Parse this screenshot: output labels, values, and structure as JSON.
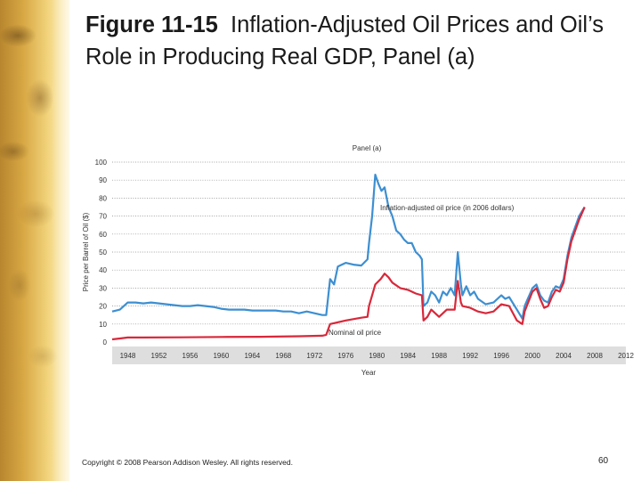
{
  "slide": {
    "title_bold": "Figure 11-15",
    "title_rest": "Inflation-Adjusted Oil Prices and Oil’s Role in Producing Real GDP, Panel (a)",
    "copyright": "Copyright © 2008 Pearson Addison Wesley. All rights reserved.",
    "page_number": "60"
  },
  "chart_data": {
    "type": "line",
    "title": "Panel (a)",
    "xlabel": "Year",
    "ylabel": "Price per Barrel of Oil ($)",
    "xlim": [
      1946,
      2012
    ],
    "ylim": [
      0,
      100
    ],
    "x_ticks": [
      1948,
      1952,
      1956,
      1960,
      1964,
      1968,
      1972,
      1976,
      1980,
      1984,
      1988,
      1992,
      1996,
      2000,
      2004,
      2008,
      2012
    ],
    "y_ticks": [
      0,
      10,
      20,
      30,
      40,
      50,
      60,
      70,
      80,
      90,
      100
    ],
    "grid": "horizontal dotted",
    "annotations": [
      {
        "text": "Inflation-adjusted oil price (in 2006 dollars)",
        "series": 0
      },
      {
        "text": "Nominal oil price",
        "series": 1
      }
    ],
    "series": [
      {
        "name": "Inflation-adjusted oil price (in 2006 dollars)",
        "color": "#3d8fd1",
        "points": [
          [
            1946,
            17
          ],
          [
            1947,
            18
          ],
          [
            1948,
            22
          ],
          [
            1949,
            22
          ],
          [
            1950,
            21.5
          ],
          [
            1951,
            22
          ],
          [
            1952,
            21.5
          ],
          [
            1953,
            21
          ],
          [
            1954,
            20.5
          ],
          [
            1955,
            20
          ],
          [
            1956,
            20
          ],
          [
            1957,
            20.5
          ],
          [
            1958,
            20
          ],
          [
            1959,
            19.5
          ],
          [
            1960,
            18.5
          ],
          [
            1961,
            18
          ],
          [
            1962,
            18
          ],
          [
            1963,
            18
          ],
          [
            1964,
            17.5
          ],
          [
            1965,
            17.5
          ],
          [
            1966,
            17.5
          ],
          [
            1967,
            17.5
          ],
          [
            1968,
            17
          ],
          [
            1969,
            17
          ],
          [
            1970,
            16
          ],
          [
            1971,
            17
          ],
          [
            1972,
            16
          ],
          [
            1973,
            15
          ],
          [
            1973.5,
            15
          ],
          [
            1974,
            35
          ],
          [
            1974.5,
            32
          ],
          [
            1975,
            42
          ],
          [
            1976,
            44
          ],
          [
            1977,
            43
          ],
          [
            1978,
            42.5
          ],
          [
            1978.8,
            46
          ],
          [
            1979,
            55
          ],
          [
            1979.4,
            70
          ],
          [
            1979.8,
            93
          ],
          [
            1980.2,
            88
          ],
          [
            1980.6,
            84
          ],
          [
            1981,
            86
          ],
          [
            1981.5,
            75
          ],
          [
            1982,
            70
          ],
          [
            1982.5,
            62
          ],
          [
            1983,
            60
          ],
          [
            1983.5,
            57
          ],
          [
            1984,
            55
          ],
          [
            1984.5,
            55
          ],
          [
            1985,
            50
          ],
          [
            1985.5,
            48
          ],
          [
            1985.8,
            46
          ],
          [
            1986,
            20
          ],
          [
            1986.5,
            22
          ],
          [
            1987,
            28
          ],
          [
            1987.5,
            26
          ],
          [
            1988,
            22
          ],
          [
            1988.5,
            28
          ],
          [
            1989,
            26
          ],
          [
            1989.5,
            30
          ],
          [
            1990,
            26
          ],
          [
            1990.4,
            50
          ],
          [
            1990.8,
            32
          ],
          [
            1991,
            26
          ],
          [
            1991.5,
            31
          ],
          [
            1992,
            26
          ],
          [
            1992.5,
            28
          ],
          [
            1993,
            24
          ],
          [
            1994,
            21
          ],
          [
            1995,
            22
          ],
          [
            1996,
            26
          ],
          [
            1996.5,
            24
          ],
          [
            1997,
            25
          ],
          [
            1998,
            18
          ],
          [
            1998.7,
            13
          ],
          [
            1999,
            20
          ],
          [
            2000,
            30
          ],
          [
            2000.5,
            32
          ],
          [
            2001,
            26
          ],
          [
            2001.5,
            23
          ],
          [
            2002,
            22
          ],
          [
            2002.5,
            28
          ],
          [
            2003,
            31
          ],
          [
            2003.5,
            30
          ],
          [
            2004,
            35
          ],
          [
            2004.5,
            48
          ],
          [
            2005,
            58
          ],
          [
            2006,
            70
          ],
          [
            2006.7,
            75
          ]
        ]
      },
      {
        "name": "Nominal oil price",
        "color": "#d8283a",
        "points": [
          [
            1946,
            1.5
          ],
          [
            1947,
            2
          ],
          [
            1948,
            2.5
          ],
          [
            1950,
            2.5
          ],
          [
            1955,
            2.6
          ],
          [
            1960,
            2.8
          ],
          [
            1965,
            2.9
          ],
          [
            1970,
            3.2
          ],
          [
            1973,
            3.5
          ],
          [
            1973.5,
            4
          ],
          [
            1974,
            10
          ],
          [
            1976,
            12
          ],
          [
            1978,
            13.5
          ],
          [
            1978.8,
            14
          ],
          [
            1979,
            20
          ],
          [
            1979.8,
            32
          ],
          [
            1980.5,
            35
          ],
          [
            1981,
            38
          ],
          [
            1981.5,
            36
          ],
          [
            1982,
            33
          ],
          [
            1983,
            30
          ],
          [
            1984,
            29
          ],
          [
            1985,
            27
          ],
          [
            1985.8,
            26
          ],
          [
            1986,
            12
          ],
          [
            1986.5,
            14
          ],
          [
            1987,
            18
          ],
          [
            1988,
            14
          ],
          [
            1989,
            18
          ],
          [
            1990,
            18
          ],
          [
            1990.4,
            34
          ],
          [
            1990.8,
            22
          ],
          [
            1991,
            20
          ],
          [
            1992,
            19
          ],
          [
            1993,
            17
          ],
          [
            1994,
            16
          ],
          [
            1995,
            17
          ],
          [
            1996,
            21
          ],
          [
            1997,
            20
          ],
          [
            1998,
            12
          ],
          [
            1998.7,
            10
          ],
          [
            1999,
            17
          ],
          [
            2000,
            28
          ],
          [
            2000.5,
            30
          ],
          [
            2001,
            24
          ],
          [
            2001.5,
            19
          ],
          [
            2002,
            20
          ],
          [
            2002.5,
            25
          ],
          [
            2003,
            29
          ],
          [
            2003.5,
            28
          ],
          [
            2004,
            33
          ],
          [
            2004.5,
            46
          ],
          [
            2005,
            56
          ],
          [
            2006,
            68
          ],
          [
            2006.7,
            75
          ]
        ]
      }
    ]
  }
}
